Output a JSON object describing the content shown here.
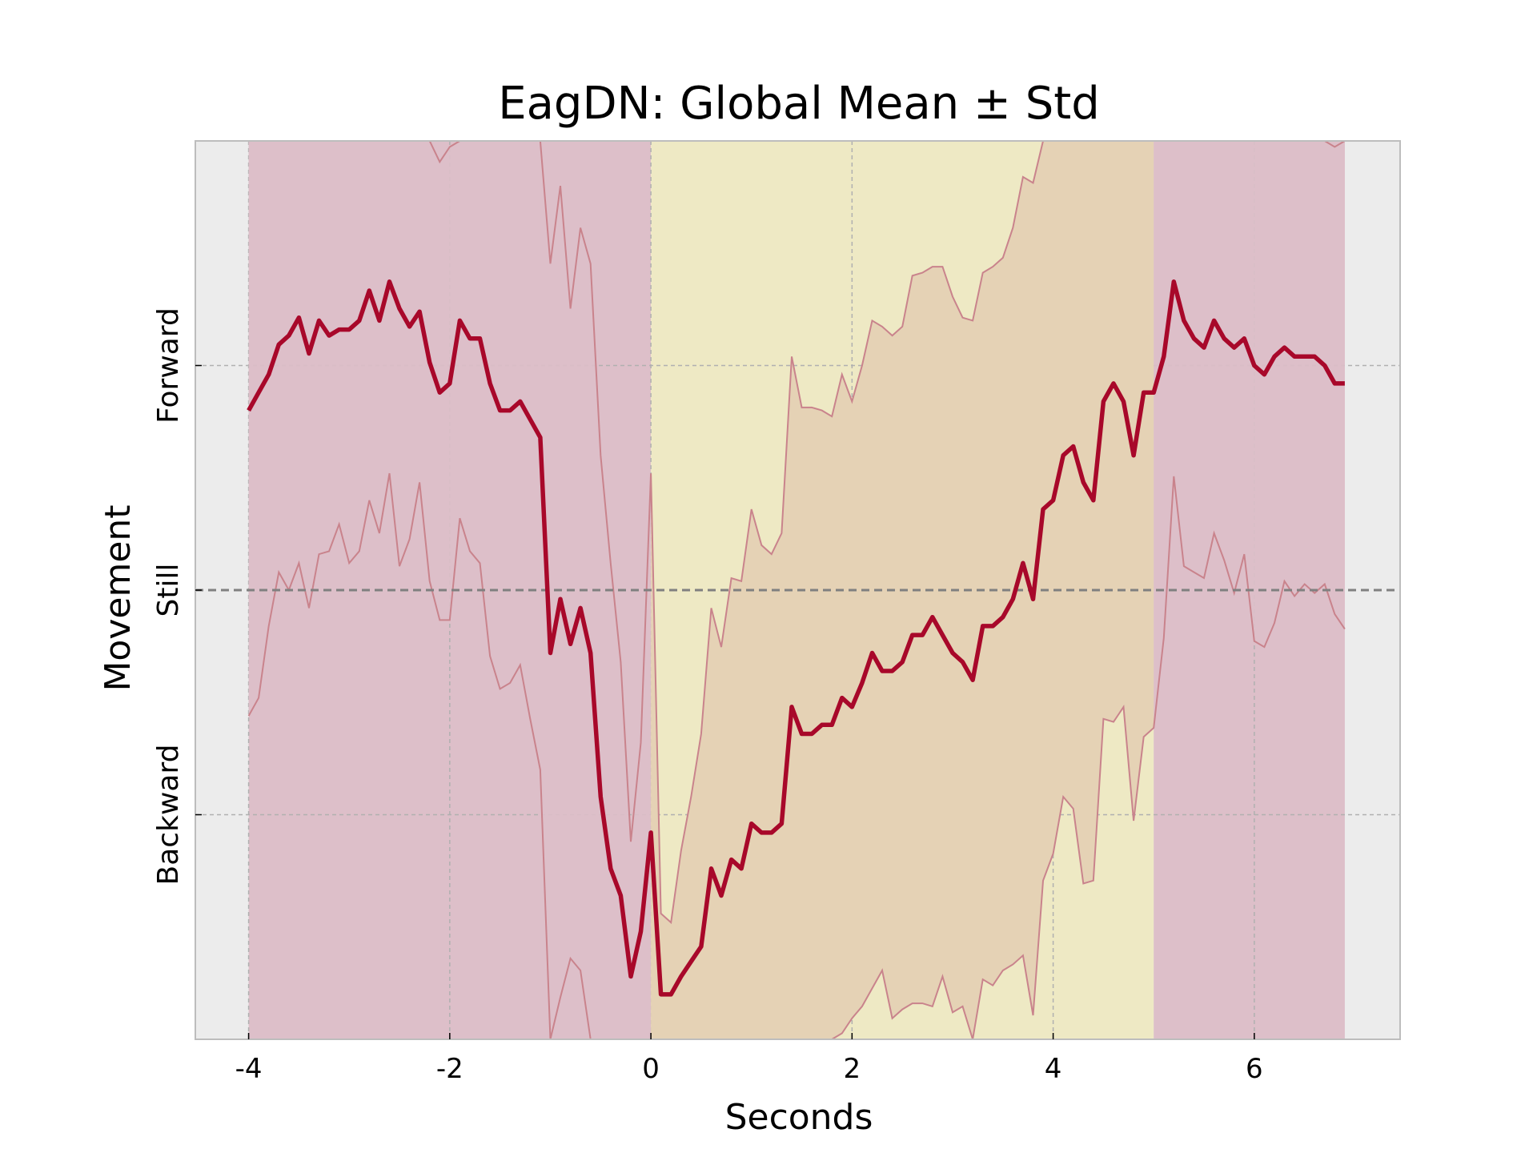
{
  "chart_data": {
    "type": "line",
    "title": "EagDN: Global Mean ± Std",
    "xlabel": "Seconds",
    "ylabel": "Movement",
    "xlim": [
      -4.53,
      7.45
    ],
    "ylim": [
      -1.5,
      1.5
    ],
    "xticks": [
      {
        "value": -4,
        "label": "-4"
      },
      {
        "value": -2,
        "label": "-2"
      },
      {
        "value": 0,
        "label": "0"
      },
      {
        "value": 2,
        "label": "2"
      },
      {
        "value": 4,
        "label": "4"
      },
      {
        "value": 6,
        "label": "6"
      }
    ],
    "yticks": [
      {
        "value": 0.75,
        "label": "Forward"
      },
      {
        "value": 0,
        "label": "Still"
      },
      {
        "value": -0.75,
        "label": "Backward"
      }
    ],
    "grid": true,
    "shaded_regions": [
      {
        "x0": -4,
        "x1": 0,
        "color": "#ddbfc9"
      },
      {
        "x0": 0,
        "x1": 5,
        "color": "#eee9c4"
      },
      {
        "x0": 5,
        "x1": 6.9,
        "color": "#ddbfc9"
      }
    ],
    "band_overlap_color": "#e5d2b5",
    "band_color": "#c9838c",
    "line_color": "#a8082a",
    "zero_line_color": "#808080",
    "background_color": "#ececec",
    "series": [
      {
        "x": [
          -4,
          -3.9,
          -3.8,
          -3.7,
          -3.6,
          -3.5,
          -3.4,
          -3.3,
          -3.2,
          -3.1,
          -3.0,
          -2.9,
          -2.8,
          -2.7,
          -2.6,
          -2.5,
          -2.4,
          -2.3,
          -2.2,
          -2.1,
          -2.0,
          -1.9,
          -1.8,
          -1.7,
          -1.6,
          -1.5,
          -1.4,
          -1.3,
          -1.2,
          -1.1,
          -1.0,
          -0.9,
          -0.8,
          -0.7,
          -0.6,
          -0.5,
          -0.4,
          -0.3,
          -0.2,
          -0.1,
          0.0,
          0.1,
          0.2,
          0.3,
          0.4,
          0.5,
          0.6,
          0.7,
          0.8,
          0.9,
          1.0,
          1.1,
          1.2,
          1.3,
          1.4,
          1.5,
          1.6,
          1.7,
          1.8,
          1.9,
          2.0,
          2.1,
          2.2,
          2.3,
          2.4,
          2.5,
          2.6,
          2.7,
          2.8,
          2.9,
          3.0,
          3.1,
          3.2,
          3.3,
          3.4,
          3.5,
          3.6,
          3.7,
          3.8,
          3.9,
          4.0,
          4.1,
          4.2,
          4.3,
          4.4,
          4.5,
          4.6,
          4.7,
          4.8,
          4.9,
          5.0,
          5.1,
          5.2,
          5.3,
          5.4,
          5.5,
          5.6,
          5.7,
          5.8,
          5.9,
          6.0,
          6.1,
          6.2,
          6.3,
          6.4,
          6.5,
          6.6,
          6.7,
          6.8,
          6.9
        ],
        "mean": [
          0.6,
          0.66,
          0.72,
          0.82,
          0.85,
          0.91,
          0.79,
          0.9,
          0.85,
          0.87,
          0.87,
          0.9,
          1.0,
          0.9,
          1.03,
          0.94,
          0.88,
          0.93,
          0.76,
          0.66,
          0.69,
          0.9,
          0.84,
          0.84,
          0.69,
          0.6,
          0.6,
          0.63,
          0.57,
          0.51,
          -0.21,
          -0.03,
          -0.18,
          -0.06,
          -0.21,
          -0.69,
          -0.93,
          -1.02,
          -1.29,
          -1.14,
          -0.81,
          -1.35,
          -1.35,
          -1.29,
          -1.24,
          -1.19,
          -0.93,
          -1.02,
          -0.9,
          -0.93,
          -0.78,
          -0.81,
          -0.81,
          -0.78,
          -0.39,
          -0.48,
          -0.48,
          -0.45,
          -0.45,
          -0.36,
          -0.39,
          -0.31,
          -0.21,
          -0.27,
          -0.27,
          -0.24,
          -0.15,
          -0.15,
          -0.09,
          -0.15,
          -0.21,
          -0.24,
          -0.3,
          -0.12,
          -0.12,
          -0.09,
          -0.03,
          0.09,
          -0.03,
          0.27,
          0.3,
          0.45,
          0.48,
          0.36,
          0.3,
          0.63,
          0.69,
          0.63,
          0.45,
          0.66,
          0.66,
          0.78,
          1.03,
          0.9,
          0.84,
          0.81,
          0.9,
          0.84,
          0.81,
          0.84,
          0.75,
          0.72,
          0.78,
          0.81,
          0.78,
          0.78,
          0.78,
          0.75,
          0.69,
          0.69
        ],
        "upper": [
          1.5,
          1.5,
          1.5,
          1.5,
          1.5,
          1.5,
          1.5,
          1.5,
          1.5,
          1.5,
          1.5,
          1.5,
          1.5,
          1.5,
          1.5,
          1.5,
          1.5,
          1.5,
          1.5,
          1.43,
          1.48,
          1.5,
          1.5,
          1.5,
          1.5,
          1.5,
          1.5,
          1.5,
          1.5,
          1.5,
          1.09,
          1.35,
          0.94,
          1.21,
          1.09,
          0.45,
          0.09,
          -0.24,
          -0.84,
          -0.51,
          0.39,
          -1.08,
          -1.11,
          -0.87,
          -0.69,
          -0.48,
          -0.06,
          -0.19,
          0.04,
          0.03,
          0.27,
          0.15,
          0.12,
          0.19,
          0.78,
          0.61,
          0.61,
          0.6,
          0.58,
          0.72,
          0.63,
          0.75,
          0.9,
          0.88,
          0.85,
          0.88,
          1.05,
          1.06,
          1.08,
          1.08,
          0.98,
          0.91,
          0.9,
          1.06,
          1.08,
          1.11,
          1.21,
          1.38,
          1.36,
          1.5,
          1.5,
          1.5,
          1.5,
          1.5,
          1.5,
          1.5,
          1.5,
          1.5,
          1.5,
          1.5,
          1.5,
          1.5,
          1.5,
          1.5,
          1.5,
          1.5,
          1.5,
          1.5,
          1.5,
          1.5,
          1.5,
          1.5,
          1.5,
          1.5,
          1.5,
          1.5,
          1.5,
          1.5,
          1.48,
          1.5
        ],
        "lower": [
          -0.42,
          -0.36,
          -0.12,
          0.06,
          0.0,
          0.09,
          -0.06,
          0.12,
          0.13,
          0.22,
          0.09,
          0.13,
          0.3,
          0.19,
          0.39,
          0.08,
          0.17,
          0.36,
          0.03,
          -0.1,
          -0.1,
          0.24,
          0.13,
          0.09,
          -0.22,
          -0.33,
          -0.31,
          -0.25,
          -0.43,
          -0.6,
          -1.5,
          -1.36,
          -1.23,
          -1.27,
          -1.5,
          -1.5,
          -1.5,
          -1.5,
          -1.5,
          -1.5,
          -1.5,
          -1.5,
          -1.5,
          -1.5,
          -1.5,
          -1.5,
          -1.5,
          -1.5,
          -1.5,
          -1.5,
          -1.5,
          -1.5,
          -1.5,
          -1.5,
          -1.5,
          -1.5,
          -1.5,
          -1.5,
          -1.5,
          -1.48,
          -1.43,
          -1.39,
          -1.33,
          -1.27,
          -1.43,
          -1.4,
          -1.38,
          -1.38,
          -1.39,
          -1.29,
          -1.41,
          -1.39,
          -1.5,
          -1.3,
          -1.32,
          -1.27,
          -1.25,
          -1.22,
          -1.42,
          -0.97,
          -0.88,
          -0.69,
          -0.73,
          -0.98,
          -0.97,
          -0.43,
          -0.44,
          -0.39,
          -0.77,
          -0.49,
          -0.46,
          -0.16,
          0.38,
          0.08,
          0.06,
          0.04,
          0.19,
          0.1,
          -0.01,
          0.12,
          -0.17,
          -0.19,
          -0.11,
          0.03,
          -0.02,
          0.02,
          -0.01,
          0.02,
          -0.08,
          -0.13
        ]
      }
    ]
  }
}
